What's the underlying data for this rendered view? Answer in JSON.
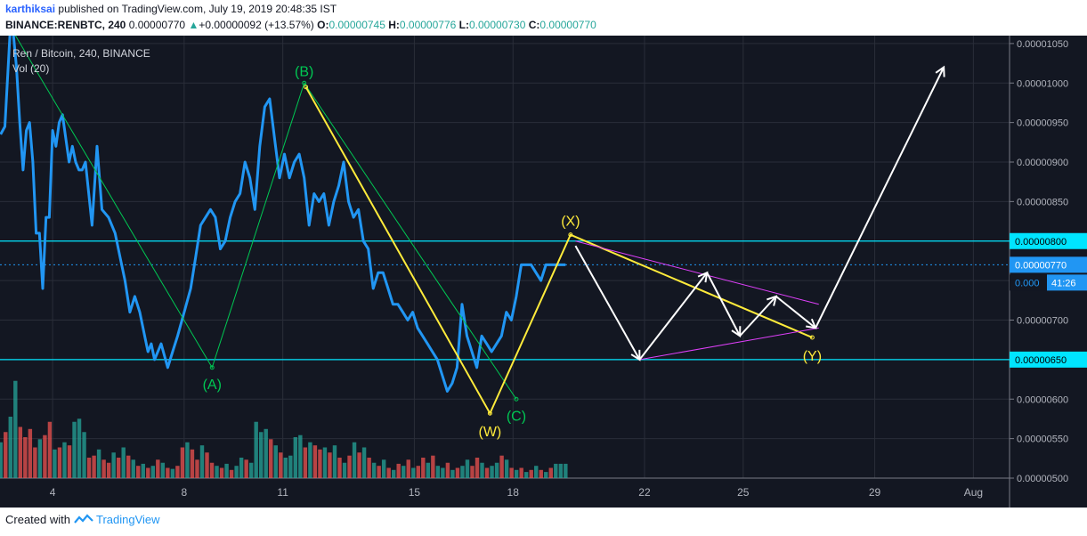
{
  "header": {
    "publisher": "karthiksai",
    "published_text": "published on TradingView.com, July 19, 2019 20:48:35 IST",
    "symbol": "BINANCE:RENBTC, 240",
    "last": "0.00000770",
    "change_arrow": "▲",
    "change": "+0.00000092 (+13.57%)",
    "o_label": "O:",
    "o": "0.00000745",
    "h_label": "H:",
    "h": "0.00000776",
    "l_label": "L:",
    "l": "0.00000730",
    "c_label": "C:",
    "c": "0.00000770"
  },
  "chart_legend": {
    "series": "Ren / Bitcoin, 240, BINANCE",
    "volume": "Vol (20)"
  },
  "footer": {
    "created_with": "Created with",
    "brand": "TradingView"
  },
  "colors": {
    "background": "#131722",
    "price_line": "#2196f3",
    "support_line": "#00e5ff",
    "abc_lines": "#00c853",
    "wxy_lines": "#ffeb3b",
    "projection": "#ffffff",
    "triangle": "#e040fb",
    "vol_up": "#26a69a",
    "vol_down": "#ef5350"
  },
  "chart_data": {
    "type": "line",
    "title": "Ren / Bitcoin, 240, BINANCE",
    "x_ticks": [
      {
        "label": "4",
        "day": 4
      },
      {
        "label": "8",
        "day": 8
      },
      {
        "label": "11",
        "day": 11
      },
      {
        "label": "15",
        "day": 15
      },
      {
        "label": "18",
        "day": 18
      },
      {
        "label": "22",
        "day": 22
      },
      {
        "label": "25",
        "day": 25
      },
      {
        "label": "29",
        "day": 29
      },
      {
        "label": "Aug",
        "day": 32
      }
    ],
    "y_ticks": [
      "0.00000500",
      "0.00000550",
      "0.00000600",
      "0.00000650",
      "0.00000700",
      "0.00000750",
      "0.00000800",
      "0.00000850",
      "0.00000900",
      "0.00000950",
      "0.00001000",
      "0.00001050"
    ],
    "y_range": [
      5e-06,
      1.06e-05
    ],
    "x_range": [
      2.4,
      33.1
    ],
    "price_series": {
      "name": "RENBTC",
      "x": [
        2.42,
        2.55,
        2.7,
        2.8,
        2.9,
        3.0,
        3.1,
        3.2,
        3.3,
        3.4,
        3.5,
        3.6,
        3.7,
        3.8,
        3.9,
        4.0,
        4.1,
        4.2,
        4.3,
        4.4,
        4.5,
        4.6,
        4.7,
        4.8,
        4.9,
        5.0,
        5.2,
        5.35,
        5.5,
        5.7,
        5.9,
        6.05,
        6.2,
        6.35,
        6.5,
        6.65,
        6.8,
        6.9,
        7.0,
        7.1,
        7.3,
        7.5,
        7.65,
        7.8,
        8.0,
        8.2,
        8.35,
        8.5,
        8.65,
        8.8,
        8.95,
        9.1,
        9.25,
        9.4,
        9.55,
        9.7,
        9.85,
        10.0,
        10.15,
        10.3,
        10.45,
        10.6,
        10.75,
        10.9,
        11.05,
        11.2,
        11.35,
        11.5,
        11.65,
        11.8,
        11.95,
        12.1,
        12.25,
        12.4,
        12.55,
        12.7,
        12.85,
        13.0,
        13.15,
        13.3,
        13.45,
        13.6,
        13.75,
        13.9,
        14.05,
        14.2,
        14.35,
        14.5,
        14.65,
        14.8,
        14.95,
        15.1,
        15.25,
        15.4,
        15.55,
        15.7,
        15.85,
        16.0,
        16.15,
        16.3,
        16.45,
        16.6,
        16.75,
        16.9,
        17.05,
        17.2,
        17.35,
        17.5,
        17.65,
        17.8,
        17.95,
        18.1,
        18.25,
        18.4,
        18.55,
        18.7,
        18.85,
        19.0,
        19.15,
        19.3,
        19.45,
        19.6
      ],
      "y": [
        9.35e-06,
        9.45e-06,
        1.06e-05,
        1.065e-05,
        1.02e-05,
        9.5e-06,
        8.9e-06,
        9.4e-06,
        9.5e-06,
        9e-06,
        8.1e-06,
        8.1e-06,
        7.4e-06,
        8.3e-06,
        8.3e-06,
        9.4e-06,
        9.2e-06,
        9.5e-06,
        9.6e-06,
        9.3e-06,
        9e-06,
        9.2e-06,
        9e-06,
        8.9e-06,
        8.9e-06,
        9e-06,
        8.2e-06,
        9.2e-06,
        8.4e-06,
        8.3e-06,
        8.1e-06,
        7.8e-06,
        7.5e-06,
        7.1e-06,
        7.3e-06,
        7.1e-06,
        6.8e-06,
        6.6e-06,
        6.7e-06,
        6.5e-06,
        6.7e-06,
        6.4e-06,
        6.6e-06,
        6.8e-06,
        7.1e-06,
        7.4e-06,
        7.8e-06,
        8.2e-06,
        8.3e-06,
        8.4e-06,
        8.3e-06,
        7.9e-06,
        8e-06,
        8.3e-06,
        8.5e-06,
        8.6e-06,
        9e-06,
        8.8e-06,
        8.4e-06,
        9.2e-06,
        9.7e-06,
        9.8e-06,
        9.3e-06,
        8.8e-06,
        9.1e-06,
        8.8e-06,
        9e-06,
        9.1e-06,
        8.8e-06,
        8.2e-06,
        8.6e-06,
        8.5e-06,
        8.6e-06,
        8.2e-06,
        8.5e-06,
        8.7e-06,
        9e-06,
        8.5e-06,
        8.3e-06,
        8.4e-06,
        8e-06,
        7.9e-06,
        7.4e-06,
        7.6e-06,
        7.6e-06,
        7.4e-06,
        7.2e-06,
        7.2e-06,
        7.1e-06,
        7e-06,
        7.1e-06,
        6.9e-06,
        6.8e-06,
        6.7e-06,
        6.6e-06,
        6.5e-06,
        6.3e-06,
        6.1e-06,
        6.2e-06,
        6.4e-06,
        7.2e-06,
        6.8e-06,
        6.6e-06,
        6.4e-06,
        6.8e-06,
        6.7e-06,
        6.6e-06,
        6.7e-06,
        6.8e-06,
        7.1e-06,
        7e-06,
        7.3e-06,
        7.7e-06,
        7.7e-06,
        7.7e-06,
        7.6e-06,
        7.5e-06,
        7.7e-06,
        7.7e-06,
        7.7e-06,
        7.7e-06,
        7.7e-06
      ]
    },
    "horizontal_levels": [
      {
        "price": 8e-06,
        "label": "0.00000800",
        "kind": "support-resistance"
      },
      {
        "price": 6.5e-06,
        "label": "0.00000650",
        "kind": "support-resistance"
      },
      {
        "price": 7.7e-06,
        "label": "0.00000770",
        "kind": "last-price"
      }
    ],
    "countdown_badge": {
      "price_label": "0.000",
      "time": "41:26"
    },
    "abc_pattern": {
      "points": [
        {
          "label": "",
          "day": 2.8,
          "price": 1.065e-05
        },
        {
          "label": "(A)",
          "day": 8.85,
          "price": 6.4e-06
        },
        {
          "label": "(B)",
          "day": 11.65,
          "price": 1e-05
        },
        {
          "label": "(C)",
          "day": 18.1,
          "price": 6e-06
        }
      ]
    },
    "wxy_pattern": {
      "points": [
        {
          "label": "",
          "day": 11.7,
          "price": 9.95e-06
        },
        {
          "label": "(W)",
          "day": 17.3,
          "price": 5.82e-06
        },
        {
          "label": "(X)",
          "day": 19.75,
          "price": 8.08e-06
        },
        {
          "label": "(Y)",
          "day": 27.1,
          "price": 6.78e-06
        }
      ]
    },
    "projection_path": {
      "points": [
        {
          "day": 19.9,
          "price": 7.94e-06
        },
        {
          "day": 21.85,
          "price": 6.5e-06
        },
        {
          "day": 23.9,
          "price": 7.6e-06
        },
        {
          "day": 24.9,
          "price": 6.8e-06
        },
        {
          "day": 26.0,
          "price": 7.3e-06
        },
        {
          "day": 27.2,
          "price": 6.9e-06
        },
        {
          "day": 31.1,
          "price": 1.02e-05
        }
      ]
    },
    "triangle_lines": [
      {
        "from": {
          "day": 19.9,
          "price": 8e-06
        },
        "to": {
          "day": 27.3,
          "price": 7.2e-06
        }
      },
      {
        "from": {
          "day": 21.85,
          "price": 6.5e-06
        },
        "to": {
          "day": 27.3,
          "price": 6.9e-06
        }
      }
    ],
    "volume": {
      "name": "Vol (20)",
      "bars": [
        {
          "v": 35,
          "up": true
        },
        {
          "v": 45,
          "up": false
        },
        {
          "v": 60,
          "up": true
        },
        {
          "v": 95,
          "up": true
        },
        {
          "v": 50,
          "up": false
        },
        {
          "v": 40,
          "up": false
        },
        {
          "v": 48,
          "up": false
        },
        {
          "v": 30,
          "up": false
        },
        {
          "v": 38,
          "up": true
        },
        {
          "v": 42,
          "up": false
        },
        {
          "v": 55,
          "up": false
        },
        {
          "v": 28,
          "up": true
        },
        {
          "v": 30,
          "up": false
        },
        {
          "v": 35,
          "up": true
        },
        {
          "v": 32,
          "up": false
        },
        {
          "v": 55,
          "up": true
        },
        {
          "v": 58,
          "up": true
        },
        {
          "v": 45,
          "up": true
        },
        {
          "v": 20,
          "up": false
        },
        {
          "v": 22,
          "up": false
        },
        {
          "v": 28,
          "up": true
        },
        {
          "v": 18,
          "up": false
        },
        {
          "v": 15,
          "up": false
        },
        {
          "v": 25,
          "up": true
        },
        {
          "v": 20,
          "up": false
        },
        {
          "v": 30,
          "up": true
        },
        {
          "v": 22,
          "up": false
        },
        {
          "v": 18,
          "up": true
        },
        {
          "v": 12,
          "up": false
        },
        {
          "v": 14,
          "up": true
        },
        {
          "v": 10,
          "up": false
        },
        {
          "v": 12,
          "up": true
        },
        {
          "v": 18,
          "up": false
        },
        {
          "v": 15,
          "up": true
        },
        {
          "v": 10,
          "up": false
        },
        {
          "v": 9,
          "up": true
        },
        {
          "v": 12,
          "up": false
        },
        {
          "v": 30,
          "up": false
        },
        {
          "v": 35,
          "up": true
        },
        {
          "v": 28,
          "up": false
        },
        {
          "v": 18,
          "up": false
        },
        {
          "v": 32,
          "up": true
        },
        {
          "v": 25,
          "up": false
        },
        {
          "v": 15,
          "up": false
        },
        {
          "v": 12,
          "up": true
        },
        {
          "v": 10,
          "up": false
        },
        {
          "v": 14,
          "up": true
        },
        {
          "v": 8,
          "up": false
        },
        {
          "v": 12,
          "up": true
        },
        {
          "v": 20,
          "up": true
        },
        {
          "v": 18,
          "up": false
        },
        {
          "v": 15,
          "up": true
        },
        {
          "v": 55,
          "up": true
        },
        {
          "v": 45,
          "up": true
        },
        {
          "v": 48,
          "up": true
        },
        {
          "v": 38,
          "up": false
        },
        {
          "v": 32,
          "up": true
        },
        {
          "v": 25,
          "up": false
        },
        {
          "v": 20,
          "up": true
        },
        {
          "v": 22,
          "up": true
        },
        {
          "v": 40,
          "up": true
        },
        {
          "v": 42,
          "up": true
        },
        {
          "v": 30,
          "up": false
        },
        {
          "v": 35,
          "up": true
        },
        {
          "v": 32,
          "up": false
        },
        {
          "v": 28,
          "up": false
        },
        {
          "v": 30,
          "up": true
        },
        {
          "v": 25,
          "up": false
        },
        {
          "v": 32,
          "up": true
        },
        {
          "v": 20,
          "up": false
        },
        {
          "v": 15,
          "up": true
        },
        {
          "v": 22,
          "up": false
        },
        {
          "v": 35,
          "up": true
        },
        {
          "v": 25,
          "up": false
        },
        {
          "v": 30,
          "up": true
        },
        {
          "v": 20,
          "up": false
        },
        {
          "v": 15,
          "up": true
        },
        {
          "v": 12,
          "up": false
        },
        {
          "v": 18,
          "up": true
        },
        {
          "v": 10,
          "up": false
        },
        {
          "v": 8,
          "up": true
        },
        {
          "v": 14,
          "up": false
        },
        {
          "v": 12,
          "up": true
        },
        {
          "v": 18,
          "up": false
        },
        {
          "v": 10,
          "up": true
        },
        {
          "v": 12,
          "up": false
        },
        {
          "v": 20,
          "up": false
        },
        {
          "v": 15,
          "up": true
        },
        {
          "v": 22,
          "up": false
        },
        {
          "v": 12,
          "up": true
        },
        {
          "v": 10,
          "up": true
        },
        {
          "v": 15,
          "up": false
        },
        {
          "v": 8,
          "up": true
        },
        {
          "v": 10,
          "up": false
        },
        {
          "v": 12,
          "up": true
        },
        {
          "v": 18,
          "up": true
        },
        {
          "v": 12,
          "up": false
        },
        {
          "v": 20,
          "up": false
        },
        {
          "v": 15,
          "up": true
        },
        {
          "v": 10,
          "up": false
        },
        {
          "v": 12,
          "up": true
        },
        {
          "v": 15,
          "up": true
        },
        {
          "v": 22,
          "up": false
        },
        {
          "v": 18,
          "up": true
        },
        {
          "v": 10,
          "up": false
        },
        {
          "v": 8,
          "up": true
        },
        {
          "v": 10,
          "up": false
        },
        {
          "v": 6,
          "up": true
        },
        {
          "v": 8,
          "up": false
        },
        {
          "v": 12,
          "up": true
        },
        {
          "v": 8,
          "up": false
        },
        {
          "v": 6,
          "up": true
        },
        {
          "v": 10,
          "up": false
        },
        {
          "v": 14,
          "up": true
        },
        {
          "v": 14,
          "up": true
        },
        {
          "v": 14,
          "up": true
        }
      ]
    }
  }
}
